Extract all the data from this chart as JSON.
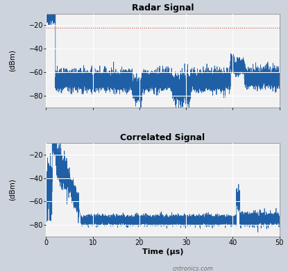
{
  "title1": "Radar Signal",
  "title2": "Correlated Signal",
  "xlabel": "Time (μs)",
  "ylabel": "(dBm)",
  "xlim": [
    0,
    50
  ],
  "ylim1": [
    -90,
    -10
  ],
  "ylim2": [
    -90,
    -10
  ],
  "yticks": [
    -80,
    -60,
    -40,
    -20
  ],
  "xticks": [
    0,
    10,
    20,
    30,
    40,
    50
  ],
  "line_color": "#1f5fa6",
  "ref_line_color": "#d05050",
  "ref_line_y": -22,
  "bg_color": "#cdd3dc",
  "plot_bg_color": "#f2f2f2",
  "watermark": "cntronics.com",
  "seed": 42,
  "radar_noise_mean": -67,
  "radar_noise_std": 4,
  "corr_noise_mean": -76,
  "corr_noise_std": 2
}
